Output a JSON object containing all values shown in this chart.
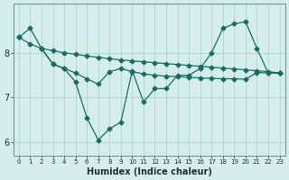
{
  "x_full": [
    0,
    1,
    2,
    3,
    4,
    5,
    6,
    7,
    8,
    9,
    10,
    11,
    12,
    13,
    14,
    15,
    16,
    17,
    18,
    19,
    20,
    21,
    22,
    23
  ],
  "line_top": [
    8.35,
    8.2,
    8.1,
    8.05,
    8.0,
    7.97,
    7.93,
    7.9,
    7.87,
    7.84,
    7.82,
    7.8,
    7.78,
    7.76,
    7.74,
    7.72,
    7.7,
    7.68,
    7.66,
    7.64,
    7.62,
    7.6,
    7.58,
    7.55
  ],
  "x_mid": [
    2,
    3,
    4,
    5,
    6,
    7,
    8,
    9,
    10,
    11,
    12,
    13,
    14,
    15,
    16,
    17,
    18,
    19,
    20,
    21,
    22,
    23
  ],
  "line_mid": [
    8.1,
    7.75,
    7.65,
    7.55,
    7.42,
    7.3,
    7.58,
    7.65,
    7.58,
    7.53,
    7.5,
    7.48,
    7.47,
    7.45,
    7.44,
    7.43,
    7.42,
    7.42,
    7.41,
    7.56,
    7.55,
    7.55
  ],
  "x_main": [
    0,
    1,
    2,
    3,
    4,
    5,
    6,
    7,
    8,
    9,
    10,
    11,
    12,
    13,
    14,
    15,
    16,
    17,
    18,
    19,
    20,
    21,
    22,
    23
  ],
  "line_main": [
    8.35,
    8.55,
    8.1,
    7.75,
    7.65,
    7.35,
    6.55,
    6.05,
    6.3,
    6.45,
    7.6,
    6.9,
    7.2,
    7.2,
    7.5,
    7.5,
    7.65,
    8.0,
    8.55,
    8.65,
    8.7,
    8.1,
    7.55,
    7.55
  ],
  "xlabel": "Humidex (Indice chaleur)",
  "bg_color": "#d5eeec",
  "line_color": "#1a6b65",
  "grid_color": "#a8ceca",
  "ylim": [
    5.7,
    9.1
  ],
  "yticks": [
    6,
    7,
    8
  ],
  "xticks": [
    0,
    1,
    2,
    3,
    4,
    5,
    6,
    7,
    8,
    9,
    10,
    11,
    12,
    13,
    14,
    15,
    16,
    17,
    18,
    19,
    20,
    21,
    22,
    23
  ],
  "xlim": [
    -0.5,
    23.5
  ]
}
